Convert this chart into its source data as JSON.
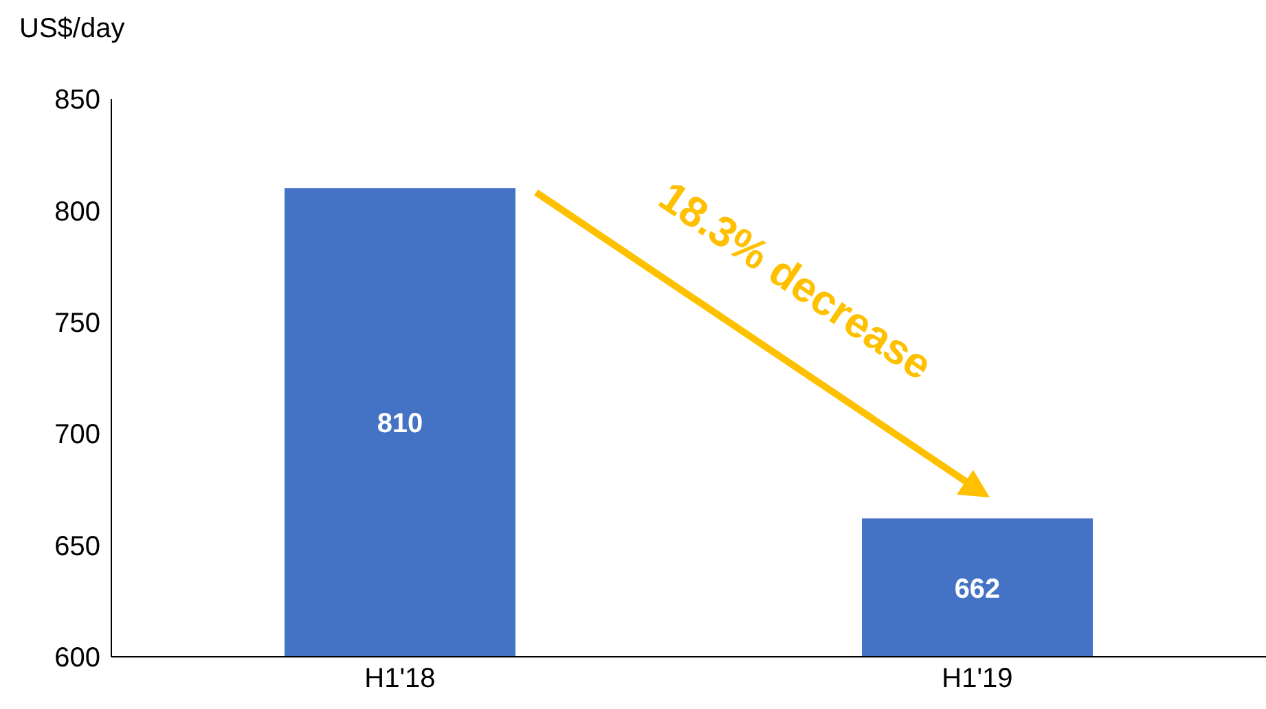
{
  "chart_data": {
    "type": "bar",
    "ylabel": "US$/day",
    "categories": [
      "H1'18",
      "H1'19"
    ],
    "values": [
      810,
      662
    ],
    "color": "#4472c4",
    "ylim": [
      600,
      850
    ],
    "yticks": [
      600,
      650,
      700,
      750,
      800,
      850
    ],
    "data_labels": true,
    "annotations": [
      "18.3% decrease"
    ]
  }
}
